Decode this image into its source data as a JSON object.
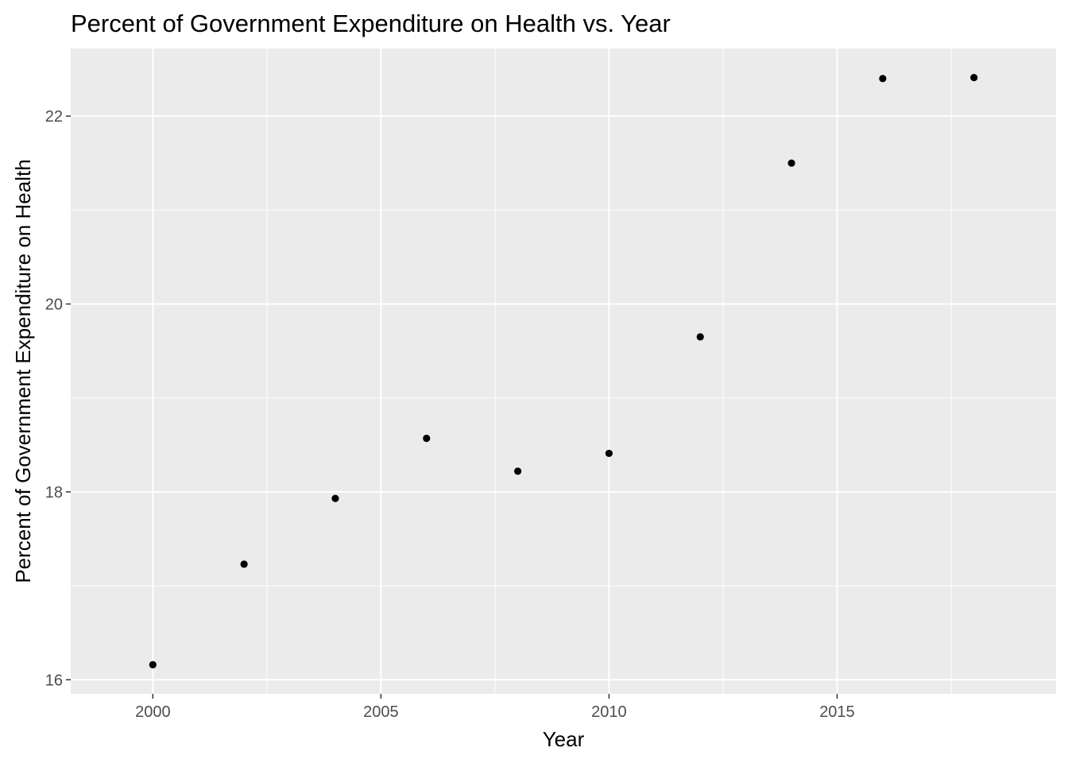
{
  "chart_data": {
    "type": "scatter",
    "title": "Percent of Government Expenditure on Health vs. Year",
    "xlabel": "Year",
    "ylabel": "Percent of Government Expenditure on Health",
    "xlim": [
      1998.2,
      2019.8
    ],
    "ylim": [
      15.85,
      22.72
    ],
    "x_ticks": [
      2000,
      2005,
      2010,
      2015
    ],
    "x_tick_labels": [
      "2000",
      "2005",
      "2010",
      "2015"
    ],
    "y_ticks": [
      16,
      18,
      20,
      22
    ],
    "y_tick_labels": [
      "16",
      "18",
      "20",
      "22"
    ],
    "grid": true,
    "points": [
      {
        "x": 2000,
        "y": 16.16
      },
      {
        "x": 2002,
        "y": 17.23
      },
      {
        "x": 2004,
        "y": 17.93
      },
      {
        "x": 2006,
        "y": 18.57
      },
      {
        "x": 2008,
        "y": 18.22
      },
      {
        "x": 2010,
        "y": 18.41
      },
      {
        "x": 2012,
        "y": 19.65
      },
      {
        "x": 2014,
        "y": 21.5
      },
      {
        "x": 2016,
        "y": 22.4
      },
      {
        "x": 2018,
        "y": 22.41
      }
    ],
    "colors": {
      "panel_background": "#ebebeb",
      "grid_major": "#ffffff",
      "point": "#000000",
      "tick_text": "#4d4d4d"
    }
  }
}
